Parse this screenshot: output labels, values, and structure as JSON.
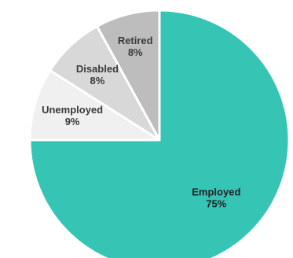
{
  "chart_data": {
    "type": "pie",
    "categories": [
      "Employed",
      "Unemployed",
      "Disabled",
      "Retired"
    ],
    "values": [
      75,
      9,
      8,
      8
    ],
    "value_labels": [
      "75%",
      "9%",
      "8%",
      "8%"
    ],
    "colors": [
      "#36c5b5",
      "#f0f0f0",
      "#d8d8d8",
      "#bdbdbd"
    ],
    "label_colors": [
      "#1f1f1f",
      "#3a3a3a",
      "#3a3a3a",
      "#3a3a3a"
    ],
    "start_angle_deg": 0,
    "direction": "clockwise",
    "title": "",
    "legend": "none"
  }
}
